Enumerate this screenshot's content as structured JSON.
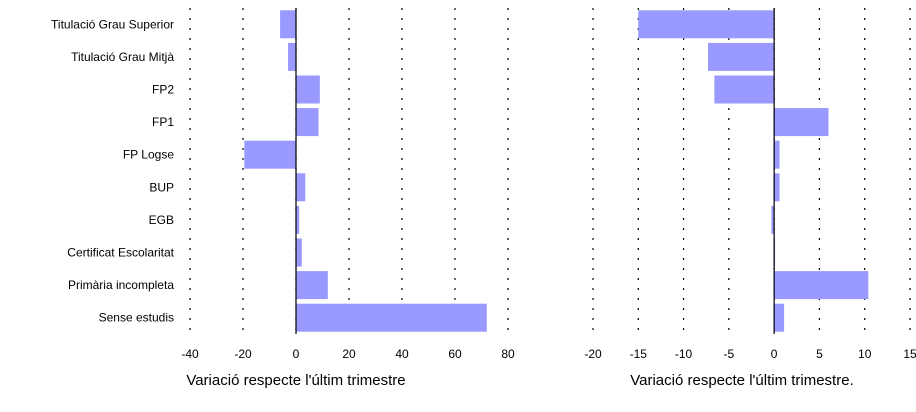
{
  "chart_data": [
    {
      "type": "bar",
      "orientation": "horizontal",
      "categories": [
        "Titulació Grau Superior",
        "Titulació Grau Mitjà",
        "FP2",
        "FP1",
        "FP Logse",
        "BUP",
        "EGB",
        "Certificat Escolaritat",
        "Primària incompleta",
        "Sense estudis"
      ],
      "values": [
        -6,
        -3,
        9,
        8.5,
        -19.5,
        3.5,
        1.2,
        2.2,
        12,
        72
      ],
      "xlabel": "Variació respecte l'últim trimestre",
      "xlim": [
        -40,
        80
      ],
      "xticks": [
        "-40",
        "-20",
        "0",
        "20",
        "40",
        "60",
        "80"
      ],
      "grid": "vertical dotted",
      "bar_color": "#9999ff"
    },
    {
      "type": "bar",
      "orientation": "horizontal",
      "categories": [
        "Titulació Grau Superior",
        "Titulació Grau Mitjà",
        "FP2",
        "FP1",
        "FP Logse",
        "BUP",
        "EGB",
        "Certificat Escolaritat",
        "Primària incompleta",
        "Sense estudis"
      ],
      "values": [
        -15,
        -7.3,
        -6.6,
        6,
        0.6,
        0.6,
        -0.3,
        0.1,
        10.4,
        1.1
      ],
      "xlabel": "Variació respecte l'últim trimestre.",
      "xlim": [
        -20,
        15
      ],
      "xticks": [
        "-20",
        "-15",
        "-10",
        "-5",
        "0",
        "5",
        "10",
        "15"
      ],
      "grid": "vertical dotted",
      "bar_color": "#9999ff"
    }
  ]
}
